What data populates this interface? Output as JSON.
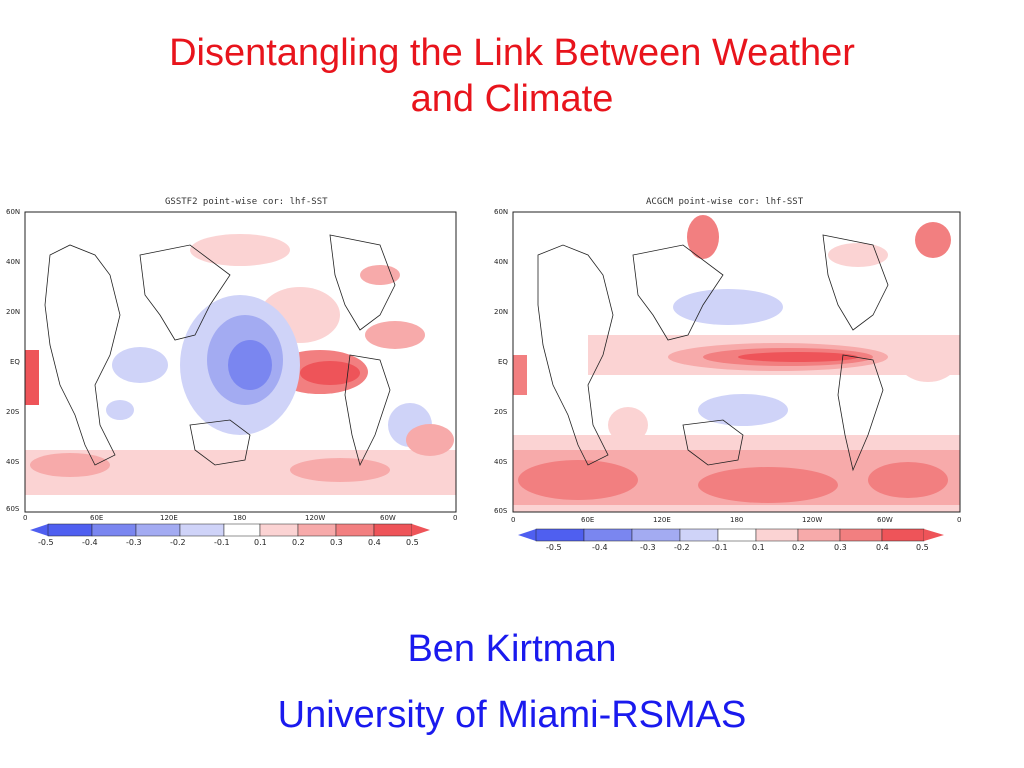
{
  "slide": {
    "title_line1": "Disentangling the Link Between Weather",
    "title_line2": "and Climate",
    "author": "Ben Kirtman",
    "affiliation": "University of Miami-RSMAS"
  },
  "maps": [
    {
      "id": "left",
      "title": "GSSTF2 point-wise cor: lhf-SST",
      "lat_ticks": [
        "60N",
        "40N",
        "20N",
        "EQ",
        "20S",
        "40S",
        "60S"
      ],
      "lon_ticks": [
        "0",
        "60E",
        "120E",
        "180",
        "120W",
        "60W",
        "0"
      ],
      "colorbar_labels": [
        "-0.5",
        "-0.4",
        "-0.3",
        "-0.2",
        "-0.1",
        "0.1",
        "0.2",
        "0.3",
        "0.4",
        "0.5"
      ]
    },
    {
      "id": "right",
      "title": "ACGCM point-wise cor: lhf-SST",
      "lat_ticks": [
        "60N",
        "40N",
        "20N",
        "EQ",
        "20S",
        "40S",
        "60S"
      ],
      "lon_ticks": [
        "0",
        "60E",
        "120E",
        "180",
        "120W",
        "60W",
        "0"
      ],
      "colorbar_labels": [
        "-0.5",
        "-0.4",
        "-0.3",
        "-0.2",
        "-0.1",
        "0.1",
        "0.2",
        "0.3",
        "0.4",
        "0.5"
      ]
    }
  ],
  "colors": {
    "title": "#e8141c",
    "author": "#1a1aee",
    "colorbar": [
      "#4f5ff0",
      "#7a86f0",
      "#a3abf2",
      "#cfd3f8",
      "#ffffff",
      "#fbd3d3",
      "#f7aaaa",
      "#f27f80",
      "#ee5459"
    ]
  }
}
